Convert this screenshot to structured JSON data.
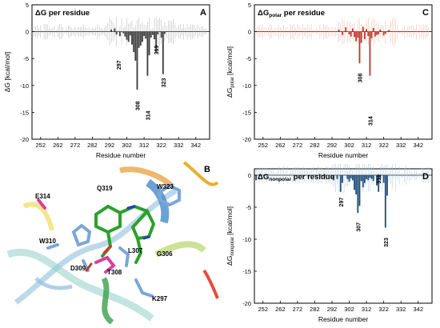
{
  "chart_data": [
    {
      "id": "A",
      "type": "bar",
      "title_main": "ΔG",
      "title_sub": "",
      "title_rest": " per residue",
      "ylabel_main": "ΔG",
      "ylabel_sub": "",
      "ylabel_rest": " [kcal/mol]",
      "xlabel": "Residue number",
      "ylim": [
        -20,
        5
      ],
      "yticks": [
        5,
        0,
        -5,
        -10,
        -15,
        -20
      ],
      "xlim": [
        247,
        350
      ],
      "xticks": [
        252,
        262,
        272,
        282,
        292,
        302,
        312,
        322,
        332,
        342
      ],
      "color": "#3d3d3d",
      "err_color": "#b0b0b0",
      "bars": [
        {
          "x": 296,
          "y": -0.5
        },
        {
          "x": 298,
          "y": -0.8
        },
        {
          "x": 300,
          "y": -0.3
        },
        {
          "x": 301,
          "y": -0.9
        },
        {
          "x": 302,
          "y": -1.5
        },
        {
          "x": 303,
          "y": -1.9
        },
        {
          "x": 304,
          "y": -0.7
        },
        {
          "x": 305,
          "y": -2.4
        },
        {
          "x": 306,
          "y": -3.8
        },
        {
          "x": 307,
          "y": -5.4
        },
        {
          "x": 308,
          "y": -10.8
        },
        {
          "x": 309,
          "y": -3.0
        },
        {
          "x": 310,
          "y": -2.6
        },
        {
          "x": 311,
          "y": -1.9
        },
        {
          "x": 312,
          "y": -0.8
        },
        {
          "x": 313,
          "y": -1.3
        },
        {
          "x": 314,
          "y": -8.2
        },
        {
          "x": 315,
          "y": -4.4
        },
        {
          "x": 316,
          "y": -1.1
        },
        {
          "x": 317,
          "y": -0.6
        },
        {
          "x": 318,
          "y": -1.4
        },
        {
          "x": 319,
          "y": -3.8
        },
        {
          "x": 320,
          "y": -0.5
        },
        {
          "x": 322,
          "y": -1.1
        },
        {
          "x": 323,
          "y": -7.9
        },
        {
          "x": 324,
          "y": -0.4
        },
        {
          "x": 293,
          "y": 0.4
        },
        {
          "x": 295,
          "y": 0.6
        }
      ],
      "labels": [
        {
          "text": "297",
          "x": 297,
          "y": -6.2
        },
        {
          "text": "308",
          "x": 308,
          "y": -13.8
        },
        {
          "text": "314",
          "x": 314,
          "y": -15.6
        },
        {
          "text": "319",
          "x": 319,
          "y": -3.4
        },
        {
          "text": "323",
          "x": 323,
          "y": -9.5
        }
      ],
      "panel_letter": "A"
    },
    {
      "id": "C",
      "type": "bar",
      "title_main": "ΔG",
      "title_sub": "polar",
      "title_rest": " per residue",
      "ylabel_main": "ΔG",
      "ylabel_sub": "polar",
      "ylabel_rest": " [kcal/mol]",
      "xlabel": "Residue number",
      "ylim": [
        -20,
        5
      ],
      "yticks": [
        5,
        0,
        -5,
        -10,
        -15,
        -20
      ],
      "xlim": [
        247,
        350
      ],
      "xticks": [
        252,
        262,
        272,
        282,
        292,
        302,
        312,
        322,
        332,
        342
      ],
      "color": "#c0392b",
      "err_color": "#f0b4a6",
      "bars": [
        {
          "x": 296,
          "y": 0.4
        },
        {
          "x": 298,
          "y": -0.6
        },
        {
          "x": 300,
          "y": 0.8
        },
        {
          "x": 302,
          "y": -0.5
        },
        {
          "x": 303,
          "y": -0.9
        },
        {
          "x": 304,
          "y": 0.6
        },
        {
          "x": 305,
          "y": -1.0
        },
        {
          "x": 306,
          "y": -1.8
        },
        {
          "x": 307,
          "y": -1.1
        },
        {
          "x": 308,
          "y": -5.9
        },
        {
          "x": 309,
          "y": -2.1
        },
        {
          "x": 310,
          "y": 0.9
        },
        {
          "x": 311,
          "y": -1.4
        },
        {
          "x": 312,
          "y": 0.5
        },
        {
          "x": 313,
          "y": -0.8
        },
        {
          "x": 314,
          "y": -8.2
        },
        {
          "x": 315,
          "y": -1.2
        },
        {
          "x": 316,
          "y": 0.7
        },
        {
          "x": 317,
          "y": -0.9
        },
        {
          "x": 318,
          "y": -0.6
        },
        {
          "x": 319,
          "y": -0.5
        },
        {
          "x": 320,
          "y": 0.4
        },
        {
          "x": 322,
          "y": -0.7
        },
        {
          "x": 323,
          "y": -0.4
        },
        {
          "x": 325,
          "y": 0.3
        }
      ],
      "labels": [
        {
          "text": "308",
          "x": 308,
          "y": -8.6
        },
        {
          "text": "314",
          "x": 314,
          "y": -16.6
        }
      ],
      "panel_letter": "C"
    },
    {
      "id": "D",
      "type": "bar",
      "title_main": "ΔG",
      "title_sub": "nonpolar",
      "title_rest": " per residue",
      "ylabel_main": "ΔG",
      "ylabel_sub": "nonpolar",
      "ylabel_rest": " [kcal/mol]",
      "xlabel": "Residue number",
      "ylim": [
        -20,
        1
      ],
      "yticks": [
        0,
        -5,
        -10,
        -15,
        -20
      ],
      "xlim": [
        247,
        350
      ],
      "xticks": [
        252,
        262,
        272,
        282,
        292,
        302,
        312,
        322,
        332,
        342
      ],
      "color": "#1f4e79",
      "err_color": "#a9c4dc",
      "bars": [
        {
          "x": 248,
          "y": -0.8
        },
        {
          "x": 293,
          "y": -0.8
        },
        {
          "x": 295,
          "y": -0.6
        },
        {
          "x": 297,
          "y": -2.6
        },
        {
          "x": 298,
          "y": -1.2
        },
        {
          "x": 301,
          "y": -0.6
        },
        {
          "x": 302,
          "y": -1.0
        },
        {
          "x": 303,
          "y": -0.5
        },
        {
          "x": 304,
          "y": -0.8
        },
        {
          "x": 305,
          "y": -2.3
        },
        {
          "x": 306,
          "y": -3.0
        },
        {
          "x": 307,
          "y": -5.9
        },
        {
          "x": 308,
          "y": -4.8
        },
        {
          "x": 309,
          "y": -0.9
        },
        {
          "x": 310,
          "y": -1.9
        },
        {
          "x": 311,
          "y": -1.2
        },
        {
          "x": 312,
          "y": -0.6
        },
        {
          "x": 313,
          "y": -0.8
        },
        {
          "x": 314,
          "y": -0.4
        },
        {
          "x": 315,
          "y": -0.6
        },
        {
          "x": 316,
          "y": -0.9
        },
        {
          "x": 318,
          "y": -1.6
        },
        {
          "x": 319,
          "y": -2.6
        },
        {
          "x": 320,
          "y": -0.5
        },
        {
          "x": 322,
          "y": -1.2
        },
        {
          "x": 323,
          "y": -8.2
        },
        {
          "x": 324,
          "y": -3.2
        }
      ],
      "labels": [
        {
          "text": "297",
          "x": 297,
          "y": -4.2
        },
        {
          "text": "307",
          "x": 307,
          "y": -8.1
        },
        {
          "text": "319",
          "x": 319,
          "y": -0.6
        },
        {
          "text": "323",
          "x": 323,
          "y": -10.5
        }
      ],
      "panel_letter": "D"
    }
  ],
  "structure": {
    "panel_letter": "B",
    "residue_labels": [
      "Q319",
      "W323",
      "E314",
      "W310",
      "L307",
      "G306",
      "D309",
      "T308",
      "K297"
    ]
  }
}
